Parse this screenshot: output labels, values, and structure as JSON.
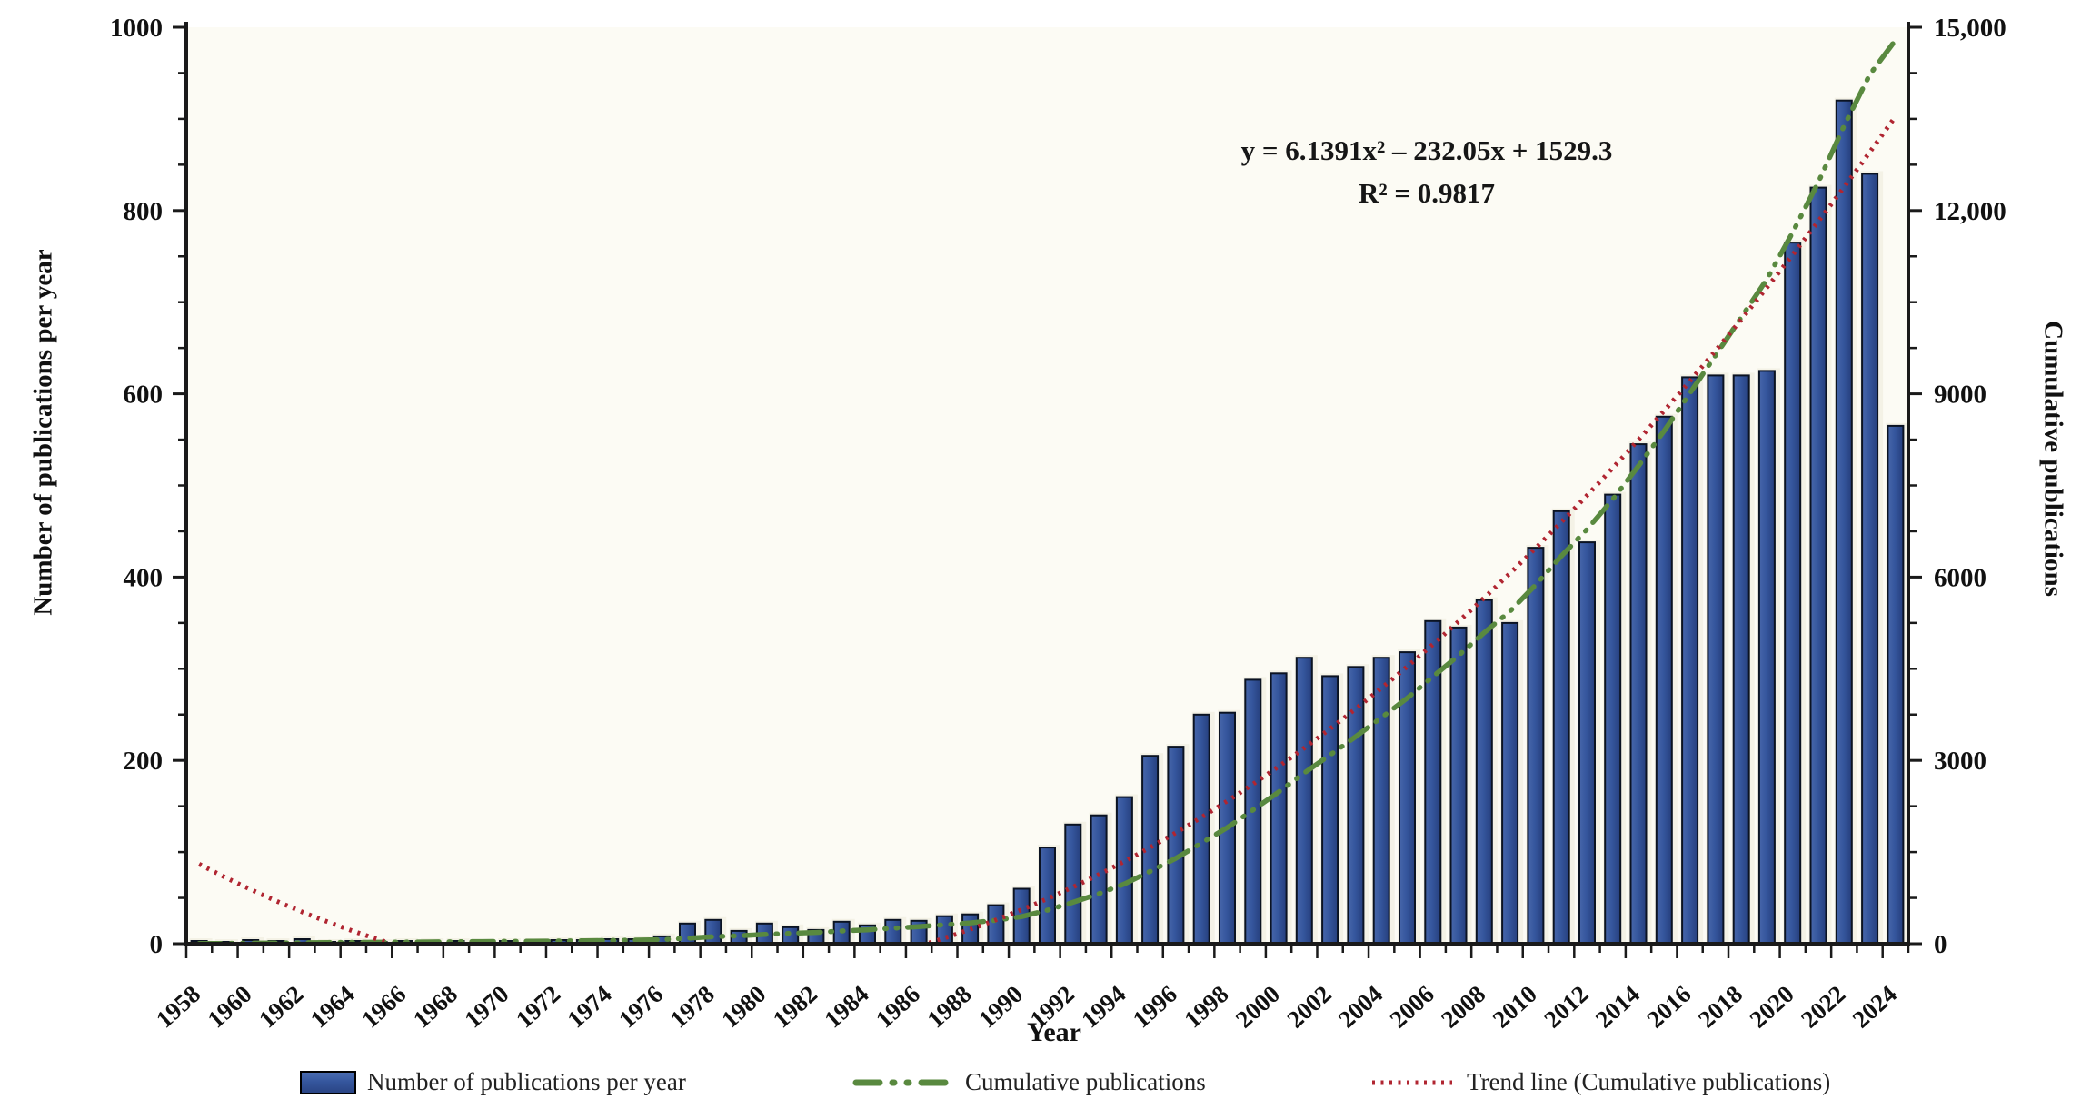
{
  "chart": {
    "left_axis": {
      "title": "Number of publications per year",
      "tick_labels": [
        "0",
        "200",
        "400",
        "600",
        "800",
        "1000"
      ],
      "tick_values": [
        0,
        200,
        400,
        600,
        800,
        1000
      ],
      "minor_step": 50,
      "max": 1000
    },
    "right_axis": {
      "title": "Cumulative publications",
      "tick_labels": [
        "0",
        "3000",
        "6000",
        "9000",
        "12,000",
        "15,000"
      ],
      "tick_values": [
        0,
        3000,
        6000,
        9000,
        12000,
        15000
      ],
      "minor_step": 750,
      "max": 15000
    },
    "x_axis": {
      "title": "Year",
      "labeled_years": [
        1958,
        1960,
        1962,
        1964,
        1966,
        1968,
        1970,
        1972,
        1974,
        1976,
        1978,
        1980,
        1982,
        1984,
        1986,
        1988,
        1990,
        1992,
        1994,
        1996,
        1998,
        2000,
        2002,
        2004,
        2006,
        2008,
        2010,
        2012,
        2014,
        2016,
        2018,
        2020,
        2022,
        2024
      ]
    },
    "annotation": {
      "equation": "y = 6.1391x² – 232.05x + 1529.3",
      "r_squared": "R² = 0.9817"
    }
  },
  "chart_data": {
    "type": "combo-bar-line",
    "categories": [
      1958,
      1959,
      1960,
      1961,
      1962,
      1963,
      1964,
      1965,
      1966,
      1967,
      1968,
      1969,
      1970,
      1971,
      1972,
      1973,
      1974,
      1975,
      1976,
      1977,
      1978,
      1979,
      1980,
      1981,
      1982,
      1983,
      1984,
      1985,
      1986,
      1987,
      1988,
      1989,
      1990,
      1991,
      1992,
      1993,
      1994,
      1995,
      1996,
      1997,
      1998,
      1999,
      2000,
      2001,
      2002,
      2003,
      2004,
      2005,
      2006,
      2007,
      2008,
      2009,
      2010,
      2011,
      2012,
      2013,
      2014,
      2015,
      2016,
      2017,
      2018,
      2019,
      2020,
      2021,
      2022,
      2023,
      2024
    ],
    "series": [
      {
        "name": "Number of publications per year",
        "type": "bar",
        "axis": "left",
        "values": [
          3,
          2,
          4,
          3,
          5,
          2,
          3,
          2,
          3,
          3,
          3,
          2,
          3,
          3,
          4,
          4,
          5,
          5,
          8,
          22,
          26,
          14,
          22,
          18,
          15,
          24,
          20,
          26,
          25,
          30,
          32,
          42,
          60,
          105,
          130,
          140,
          160,
          205,
          215,
          250,
          252,
          288,
          295,
          312,
          292,
          302,
          312,
          318,
          352,
          345,
          375,
          350,
          432,
          472,
          438,
          490,
          545,
          575,
          618,
          620,
          620,
          625,
          765,
          825,
          920,
          840,
          565
        ]
      },
      {
        "name": "Cumulative publications",
        "type": "line",
        "style": "dash-dot",
        "axis": "right",
        "values": [
          3,
          5,
          9,
          12,
          17,
          19,
          22,
          24,
          27,
          30,
          33,
          35,
          38,
          41,
          45,
          49,
          54,
          59,
          67,
          89,
          115,
          129,
          151,
          169,
          184,
          208,
          228,
          254,
          279,
          309,
          341,
          383,
          443,
          548,
          678,
          818,
          978,
          1183,
          1398,
          1648,
          1900,
          2188,
          2483,
          2795,
          3087,
          3389,
          3701,
          4019,
          4371,
          4716,
          5091,
          5441,
          5873,
          6345,
          6783,
          7273,
          7818,
          8393,
          9011,
          9631,
          10251,
          10876,
          11641,
          12466,
          13386,
          14226,
          14791
        ]
      },
      {
        "name": "Trend line (Cumulative publications)",
        "type": "line",
        "style": "dotted",
        "axis": "right",
        "equation": "y = 6.1391x^2 - 232.05x + 1529.3",
        "coefficients": {
          "a": 6.1391,
          "b": -232.05,
          "c": 1529.3
        },
        "r2": 0.9817
      }
    ],
    "ylim_left": [
      0,
      1000
    ],
    "ylim_right": [
      0,
      15000
    ],
    "grid": false,
    "legend_position": "bottom"
  },
  "legend": [
    {
      "label": "Number of publications per year",
      "marker": "bar-swatch"
    },
    {
      "label": "Cumulative publications",
      "marker": "green-dash-dot"
    },
    {
      "label": "Trend line (Cumulative publications)",
      "marker": "red-dotted"
    }
  ],
  "colors": {
    "bar_fill_light": "#4a6cb0",
    "bar_fill": "#35569d",
    "bar_fill_dark": "#2a4585",
    "bar_stroke": "#0b1322",
    "bar_glow": "#edebdb",
    "cumulative": "#59893f",
    "trend": "#b02531",
    "axis": "#1a1a1a",
    "text": "#111111",
    "plot_bg": "#fcfbf4"
  }
}
